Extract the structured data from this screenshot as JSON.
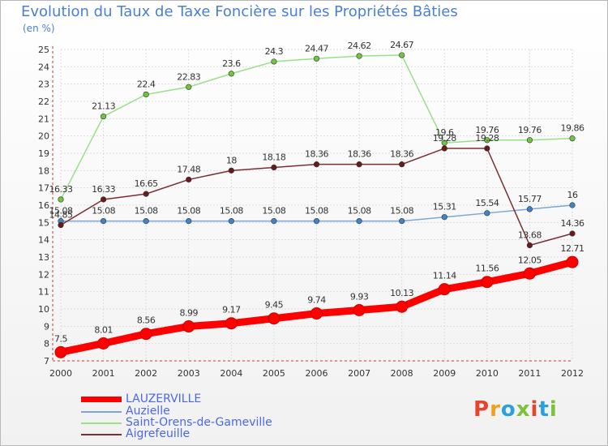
{
  "title": "Evolution du Taux de Taxe Foncière sur les Propriétés Bâties",
  "unit_label": "(en %)",
  "logo": {
    "text": "Proxiti",
    "colors": [
      "#e8442c",
      "#f0a020",
      "#2aa0e0",
      "#7cc23a",
      "#e8442c",
      "#2aa0e0",
      "#7cc23a"
    ]
  },
  "chart_data": {
    "type": "line",
    "title": "Evolution du Taux de Taxe Foncière sur les Propriétés Bâties",
    "ylabel": "(en %)",
    "xlabel": "",
    "ylim": [
      7,
      25
    ],
    "yticks": [
      7,
      8,
      9,
      10,
      11,
      12,
      13,
      14,
      15,
      16,
      17,
      18,
      19,
      20,
      21,
      22,
      23,
      24,
      25
    ],
    "x": [
      "2000",
      "2001",
      "2002",
      "2003",
      "2004",
      "2005",
      "2006",
      "2007",
      "2008",
      "2009",
      "2010",
      "2011",
      "2012"
    ],
    "grid": true,
    "legend_position": "bottom-left",
    "series": [
      {
        "name": "LAUZERVILLE",
        "color": "#ff0000",
        "thick": true,
        "values": [
          7.5,
          8.01,
          8.56,
          8.99,
          9.17,
          9.45,
          9.74,
          9.93,
          10.13,
          11.14,
          11.56,
          12.05,
          12.71
        ],
        "labels": [
          "7.5",
          "8.01",
          "8.56",
          "8.99",
          "9.17",
          "9.45",
          "9.74",
          "9.93",
          "10.13",
          "11.14",
          "11.56",
          "12.05",
          "12.71"
        ]
      },
      {
        "name": "Auzielle",
        "color": "#7aa7d6",
        "marker": "#3f84c8",
        "thick": false,
        "values": [
          15.08,
          15.08,
          15.08,
          15.08,
          15.08,
          15.08,
          15.08,
          15.08,
          15.08,
          15.31,
          15.54,
          15.77,
          16
        ],
        "labels": [
          "15.08",
          "15.08",
          "15.08",
          "15.08",
          "15.08",
          "15.08",
          "15.08",
          "15.08",
          "15.08",
          "15.31",
          "15.54",
          "15.77",
          "16"
        ]
      },
      {
        "name": "Saint-Orens-de-Gameville",
        "color": "#99e08a",
        "marker": "#72c43e",
        "thick": false,
        "values": [
          16.33,
          21.13,
          22.4,
          22.83,
          23.6,
          24.3,
          24.47,
          24.62,
          24.67,
          19.6,
          19.76,
          19.76,
          19.86
        ],
        "labels": [
          "16.33",
          "21.13",
          "22.4",
          "22.83",
          "23.6",
          "24.3",
          "24.47",
          "24.62",
          "24.67",
          "19.6",
          "19.76",
          "19.76",
          "19.86"
        ]
      },
      {
        "name": "Aigrefeuille",
        "color": "#7a3030",
        "marker": "#6a1a1a",
        "thick": false,
        "values": [
          14.85,
          16.33,
          16.65,
          17.48,
          18,
          18.18,
          18.36,
          18.36,
          18.36,
          19.28,
          19.28,
          13.68,
          14.36
        ],
        "labels": [
          "14.85",
          "16.33",
          "16.65",
          "17.48",
          "18",
          "18.18",
          "18.36",
          "18.36",
          "18.36",
          "19.28",
          "19.28",
          "13.68",
          "14.36"
        ]
      }
    ]
  }
}
